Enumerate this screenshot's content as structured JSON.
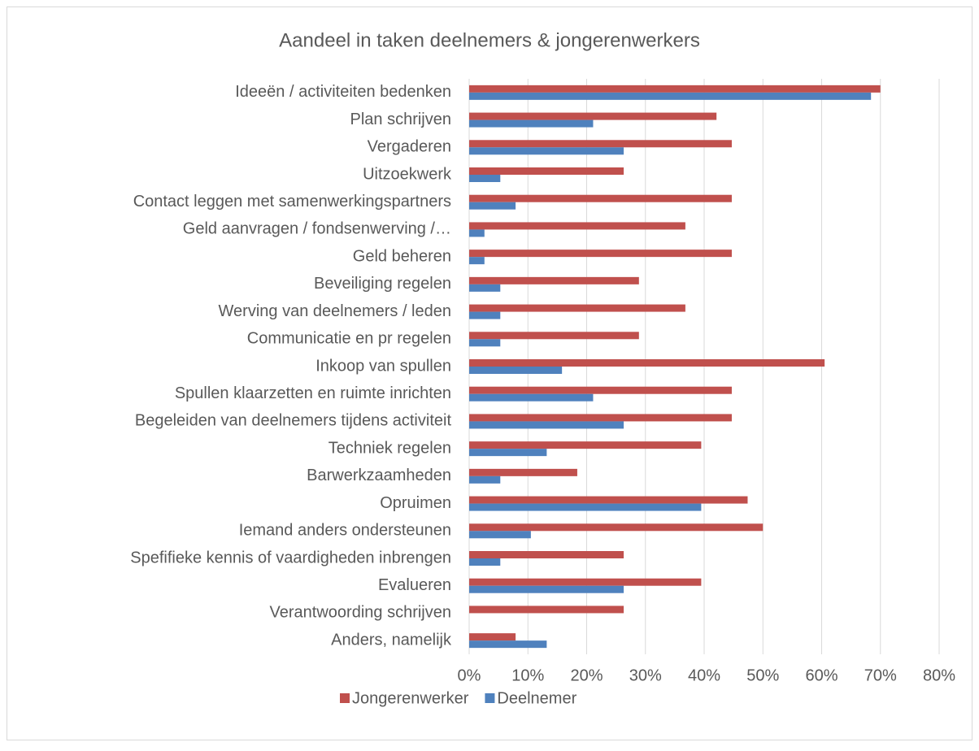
{
  "chart_data": {
    "type": "hbar",
    "title": "Aandeel in taken deelnemers & jongerenwerkers",
    "categories": [
      "Ideeën / activiteiten bedenken",
      "Plan schrijven",
      "Vergaderen",
      "Uitzoekwerk",
      "Contact leggen met samenwerkingspartners",
      "Geld aanvragen / fondsenwerving /…",
      "Geld beheren",
      "Beveiliging regelen",
      "Werving van deelnemers / leden",
      "Communicatie en pr regelen",
      "Inkoop van spullen",
      "Spullen klaarzetten en ruimte inrichten",
      "Begeleiden van deelnemers tijdens activiteit",
      "Techniek regelen",
      "Barwerkzaamheden",
      "Opruimen",
      "Iemand anders ondersteunen",
      "Spefifieke kennis of vaardigheden inbrengen",
      "Evalueren",
      "Verantwoording schrijven",
      "Anders, namelijk"
    ],
    "series": [
      {
        "name": "Jongerenwerker",
        "color": "#c0504d",
        "values": [
          70,
          42.1,
          44.7,
          26.3,
          44.7,
          36.8,
          44.7,
          28.9,
          36.8,
          28.9,
          60.5,
          44.7,
          44.7,
          39.5,
          18.4,
          47.4,
          50,
          26.3,
          39.5,
          26.3,
          7.9
        ]
      },
      {
        "name": "Deelnemer",
        "color": "#4f81bd",
        "values": [
          68.4,
          21.1,
          26.3,
          5.3,
          7.9,
          2.6,
          2.6,
          5.3,
          5.3,
          5.3,
          15.8,
          21.1,
          26.3,
          13.2,
          5.3,
          39.5,
          10.5,
          5.3,
          26.3,
          0,
          13.2
        ]
      }
    ],
    "xlim": [
      0,
      80
    ],
    "xticks": [
      {
        "value": 0,
        "label": "0%"
      },
      {
        "value": 10,
        "label": "10%"
      },
      {
        "value": 20,
        "label": "20%"
      },
      {
        "value": 30,
        "label": "30%"
      },
      {
        "value": 40,
        "label": "40%"
      },
      {
        "value": 50,
        "label": "50%"
      },
      {
        "value": 60,
        "label": "60%"
      },
      {
        "value": 70,
        "label": "70%"
      },
      {
        "value": 80,
        "label": "80%"
      }
    ],
    "grid": true,
    "legend": "bottom"
  }
}
